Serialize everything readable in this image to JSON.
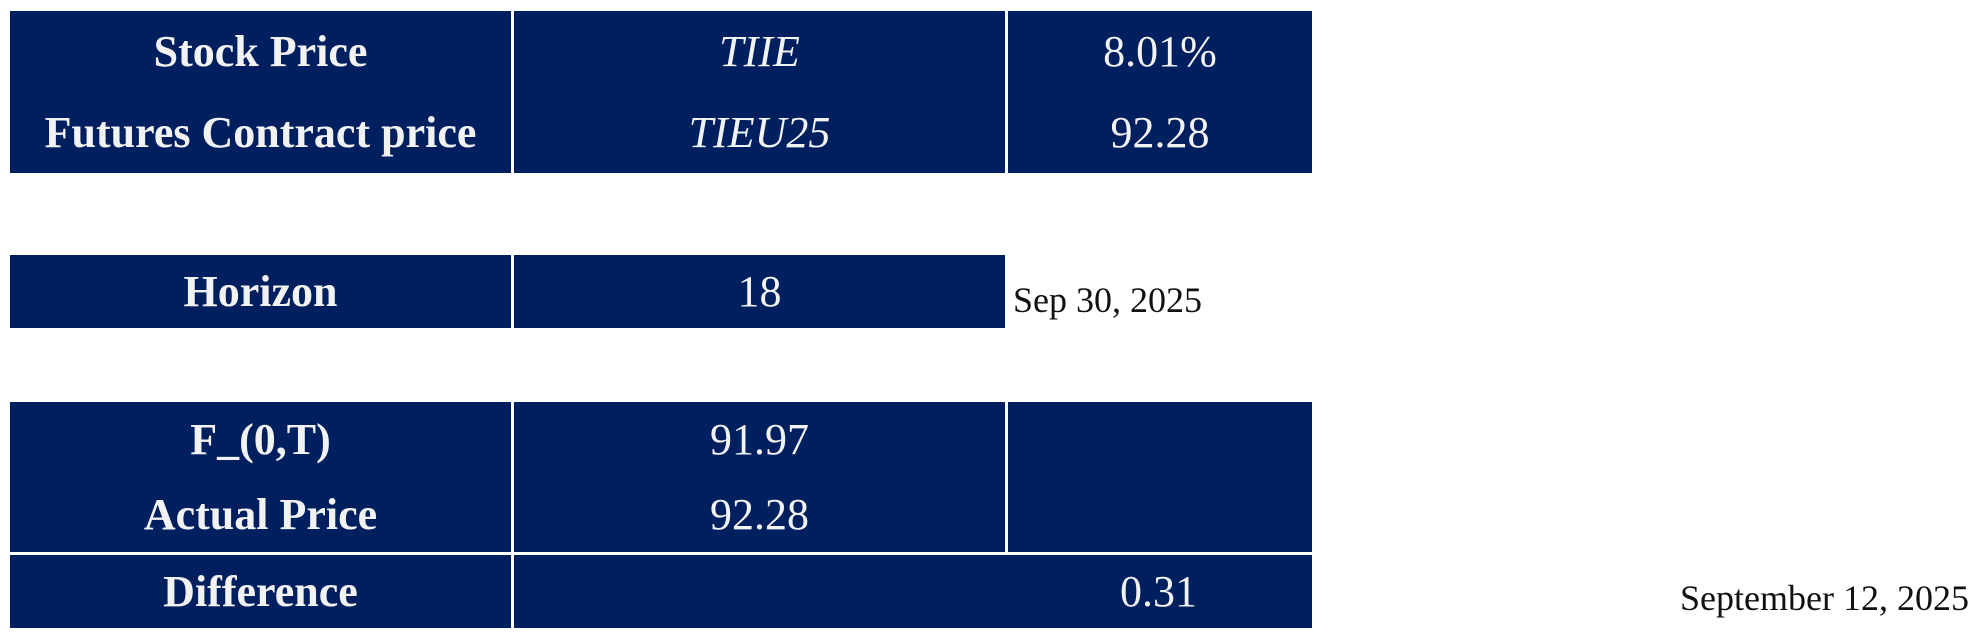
{
  "table1": {
    "rows": [
      {
        "label": "Stock Price",
        "ticker": "TIIE",
        "value": "8.01%"
      },
      {
        "label": "Futures Contract price",
        "ticker": "TIEU25",
        "value": "92.28"
      }
    ]
  },
  "horizon": {
    "label": "Horizon",
    "value": "18",
    "date": "Sep 30, 2025"
  },
  "table3": {
    "f0t_label": "F_(0,T)",
    "f0t_value": "91.97",
    "actual_label": "Actual Price",
    "actual_value": "92.28",
    "difference_label": "Difference",
    "difference_value": "0.31"
  },
  "footer_date": "September 12, 2025",
  "colors": {
    "cell_bg": "#001f5f",
    "cell_text": "#f2f2f2"
  }
}
